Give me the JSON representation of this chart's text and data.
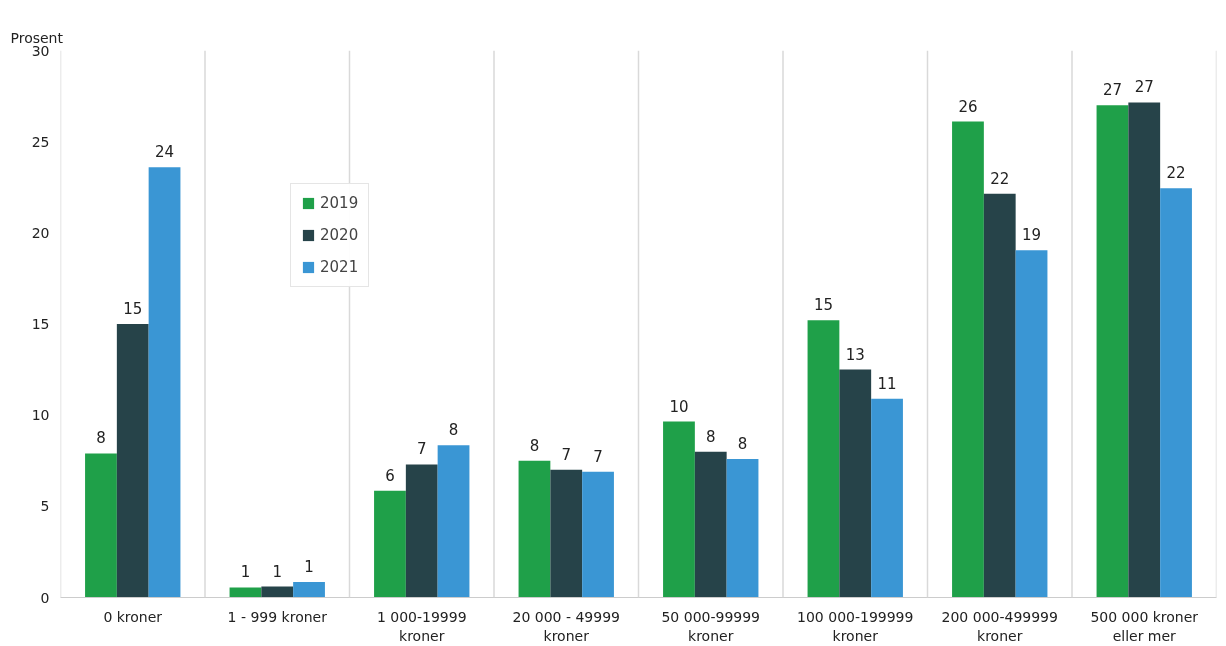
{
  "chart_data": {
    "type": "bar",
    "ylabel": "Prosent",
    "categories": [
      "0 kroner",
      "1 - 999 kroner",
      "1 000-19999 kroner",
      "20 000 - 49999 kroner",
      "50 000-99999 kroner",
      "100 000-199999 kroner",
      "200 000-499999 kroner",
      "500 000 kroner eller mer"
    ],
    "series": [
      {
        "name": "2019",
        "color": "#1fa049",
        "values": [
          7.9,
          0.55,
          5.85,
          7.5,
          9.65,
          15.2,
          26.1,
          27.0
        ],
        "value_labels": [
          "8",
          "1",
          "6",
          "8",
          "10",
          "15",
          "26",
          "27"
        ]
      },
      {
        "name": "2020",
        "color": "#264349",
        "values": [
          15.0,
          0.6,
          7.3,
          7.0,
          8.0,
          12.5,
          22.15,
          27.15
        ],
        "value_labels": [
          "15",
          "1",
          "7",
          "7",
          "8",
          "13",
          "22",
          "27"
        ]
      },
      {
        "name": "2021",
        "color": "#3a96d4",
        "values": [
          23.6,
          0.85,
          8.35,
          6.9,
          7.6,
          10.9,
          19.05,
          22.45
        ],
        "value_labels": [
          "24",
          "1",
          "8",
          "7",
          "8",
          "11",
          "19",
          "22"
        ]
      }
    ],
    "ylim": [
      0,
      30
    ],
    "yticks": [
      0,
      5,
      10,
      15,
      20,
      25,
      30
    ],
    "grid": "x",
    "legend": "top left"
  }
}
